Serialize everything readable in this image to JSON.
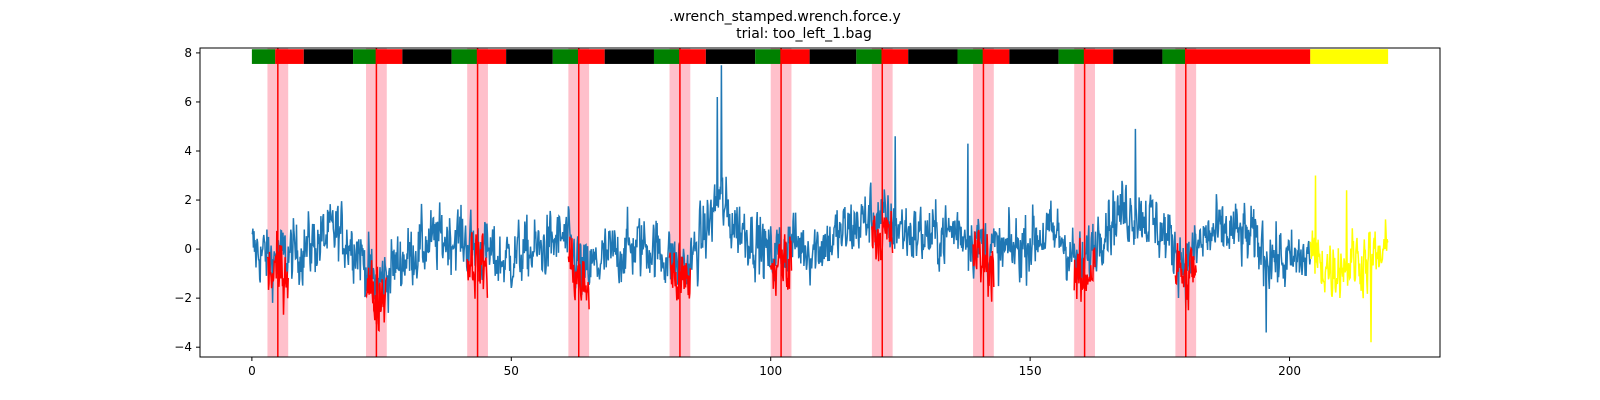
{
  "chart_data": {
    "type": "line",
    "title": ".wrench_stamped.wrench.force.y",
    "subtitle": "trial: too_left_1.bag",
    "xlabel": "",
    "ylabel": "",
    "xlim": [
      -10,
      229
    ],
    "ylim": [
      -4.4,
      8.2
    ],
    "xticks": [
      0,
      50,
      100,
      150,
      200
    ],
    "yticks": [
      -4,
      -2,
      0,
      2,
      4,
      6,
      8
    ],
    "grid": false,
    "colors": {
      "signal": "#1f77b4",
      "highlight": "#ff0000",
      "tail": "#ffff00",
      "band": "#ffc0cb",
      "event_line": "#ff0000"
    },
    "series": [
      {
        "color": "#1f77b4",
        "x_start": 0,
        "x_end": 204,
        "base": [
          [
            0,
            0.0
          ],
          [
            4,
            -0.4
          ],
          [
            8,
            -0.2
          ],
          [
            12,
            0.2
          ],
          [
            16,
            0.7
          ],
          [
            20,
            0.2
          ],
          [
            24,
            -1.5
          ],
          [
            28,
            -0.6
          ],
          [
            32,
            0.0
          ],
          [
            36,
            0.4
          ],
          [
            40,
            0.5
          ],
          [
            44,
            0.0
          ],
          [
            48,
            -0.5
          ],
          [
            52,
            -0.2
          ],
          [
            56,
            0.0
          ],
          [
            60,
            0.5
          ],
          [
            64,
            -1.0
          ],
          [
            68,
            -0.4
          ],
          [
            72,
            0.0
          ],
          [
            76,
            0.2
          ],
          [
            80,
            -0.3
          ],
          [
            84,
            -0.8
          ],
          [
            88,
            1.0
          ],
          [
            90,
            2.2
          ],
          [
            92,
            1.2
          ],
          [
            96,
            0.6
          ],
          [
            100,
            -0.3
          ],
          [
            104,
            0.3
          ],
          [
            108,
            0.0
          ],
          [
            112,
            0.4
          ],
          [
            116,
            0.9
          ],
          [
            120,
            1.4
          ],
          [
            124,
            0.9
          ],
          [
            128,
            0.6
          ],
          [
            132,
            0.5
          ],
          [
            136,
            0.8
          ],
          [
            140,
            0.3
          ],
          [
            144,
            -0.2
          ],
          [
            148,
            0.1
          ],
          [
            152,
            0.6
          ],
          [
            156,
            0.5
          ],
          [
            160,
            -0.9
          ],
          [
            164,
            1.0
          ],
          [
            168,
            1.6
          ],
          [
            172,
            1.4
          ],
          [
            176,
            0.6
          ],
          [
            180,
            -0.6
          ],
          [
            184,
            0.5
          ],
          [
            188,
            0.7
          ],
          [
            192,
            0.5
          ],
          [
            196,
            -0.2
          ],
          [
            200,
            -0.6
          ],
          [
            204,
            -0.3
          ]
        ],
        "noise": 1.15,
        "spikes": [
          [
            90.5,
            7.5
          ],
          [
            89.7,
            6.2
          ],
          [
            170.3,
            4.9
          ],
          [
            124,
            4.6
          ],
          [
            138,
            4.3
          ],
          [
            195.5,
            -3.4
          ]
        ]
      },
      {
        "color": "#ff0000",
        "segments": [
          [
            3,
            7
          ],
          [
            22,
            26
          ],
          [
            41.5,
            45.5
          ],
          [
            61,
            65
          ],
          [
            80.5,
            84.5
          ],
          [
            100,
            104
          ],
          [
            119.5,
            123.5
          ],
          [
            139,
            143
          ],
          [
            158.5,
            162.5
          ],
          [
            178,
            182
          ]
        ],
        "noise": 1.2,
        "offset": -0.6
      },
      {
        "color": "#ffff00",
        "x_start": 204,
        "x_end": 219,
        "base": [
          [
            204,
            -0.3
          ],
          [
            208,
            -0.8
          ],
          [
            212,
            -0.4
          ],
          [
            216,
            -0.5
          ],
          [
            219,
            -0.1
          ]
        ],
        "noise": 1.15,
        "spikes": [
          [
            205,
            3.0
          ],
          [
            215.7,
            -3.8
          ],
          [
            211,
            2.4
          ]
        ]
      }
    ],
    "event_lines": [
      5,
      24,
      43.5,
      63,
      82.5,
      102,
      121.5,
      141,
      160.5,
      180
    ],
    "event_bands": [
      [
        3,
        7
      ],
      [
        22,
        26
      ],
      [
        41.5,
        45.5
      ],
      [
        61,
        65
      ],
      [
        80.5,
        84.5
      ],
      [
        100,
        104
      ],
      [
        119.5,
        123.5
      ],
      [
        139,
        143
      ],
      [
        158.5,
        162.5
      ],
      [
        178,
        182
      ]
    ],
    "phase_bar": {
      "y_range": [
        7.55,
        8.15
      ],
      "segments": [
        {
          "x0": 0,
          "x1": 4.5,
          "color": "#008000"
        },
        {
          "x0": 4.5,
          "x1": 10,
          "color": "#ff0000"
        },
        {
          "x0": 10,
          "x1": 19.5,
          "color": "#000000"
        },
        {
          "x0": 19.5,
          "x1": 24,
          "color": "#008000"
        },
        {
          "x0": 24,
          "x1": 29,
          "color": "#ff0000"
        },
        {
          "x0": 29,
          "x1": 38.5,
          "color": "#000000"
        },
        {
          "x0": 38.5,
          "x1": 43.5,
          "color": "#008000"
        },
        {
          "x0": 43.5,
          "x1": 49,
          "color": "#ff0000"
        },
        {
          "x0": 49,
          "x1": 58,
          "color": "#000000"
        },
        {
          "x0": 58,
          "x1": 63,
          "color": "#008000"
        },
        {
          "x0": 63,
          "x1": 68,
          "color": "#ff0000"
        },
        {
          "x0": 68,
          "x1": 77.5,
          "color": "#000000"
        },
        {
          "x0": 77.5,
          "x1": 82.5,
          "color": "#008000"
        },
        {
          "x0": 82.5,
          "x1": 87.5,
          "color": "#ff0000"
        },
        {
          "x0": 87.5,
          "x1": 97,
          "color": "#000000"
        },
        {
          "x0": 97,
          "x1": 102,
          "color": "#008000"
        },
        {
          "x0": 102,
          "x1": 107.5,
          "color": "#ff0000"
        },
        {
          "x0": 107.5,
          "x1": 116.5,
          "color": "#000000"
        },
        {
          "x0": 116.5,
          "x1": 121.5,
          "color": "#008000"
        },
        {
          "x0": 121.5,
          "x1": 126.5,
          "color": "#ff0000"
        },
        {
          "x0": 126.5,
          "x1": 136,
          "color": "#000000"
        },
        {
          "x0": 136,
          "x1": 141,
          "color": "#008000"
        },
        {
          "x0": 141,
          "x1": 146,
          "color": "#ff0000"
        },
        {
          "x0": 146,
          "x1": 155.5,
          "color": "#000000"
        },
        {
          "x0": 155.5,
          "x1": 160.5,
          "color": "#008000"
        },
        {
          "x0": 160.5,
          "x1": 166,
          "color": "#ff0000"
        },
        {
          "x0": 166,
          "x1": 175.5,
          "color": "#000000"
        },
        {
          "x0": 175.5,
          "x1": 180,
          "color": "#008000"
        },
        {
          "x0": 180,
          "x1": 204,
          "color": "#ff0000"
        },
        {
          "x0": 204,
          "x1": 219,
          "color": "#ffff00"
        }
      ]
    }
  }
}
